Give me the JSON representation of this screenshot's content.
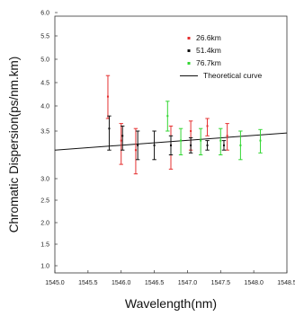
{
  "chart_data": {
    "type": "scatter",
    "xlabel": "Wavelength(nm)",
    "ylabel": "Chromatic Dispersion(ps/nm.km)",
    "xlim": [
      1545.0,
      1548.5
    ],
    "x_ticks": [
      "1545.0",
      "1545.5",
      "1546.0",
      "1546.5",
      "1547.0",
      "1547.5",
      "1548.0",
      "1548.5"
    ],
    "y_ticks": [
      {
        "value": 1.0,
        "label": "1.0"
      },
      {
        "value": 1.5,
        "label": "1.5"
      },
      {
        "value": 2.0,
        "label": "2.0"
      },
      {
        "value": 2.5,
        "label": "2.5"
      },
      {
        "value": 3.0,
        "label": "3.0"
      },
      {
        "value": 3.5,
        "label": "3.5"
      },
      {
        "value": 4.0,
        "label": "4.0"
      },
      {
        "value": 4.5,
        "label": "4.5"
      },
      {
        "value": 5.0,
        "label": "5.0"
      },
      {
        "value": 5.5,
        "label": "5.5"
      },
      {
        "value": 6.0,
        "label": "6.0"
      }
    ],
    "legend_position": "top-right",
    "series": [
      {
        "name": "26.6km",
        "color": "#e53030",
        "points": [
          {
            "x": 1545.8,
            "y": 4.2,
            "ylow": 3.75,
            "yhigh": 4.65
          },
          {
            "x": 1546.0,
            "y": 3.4,
            "ylow": 3.15,
            "yhigh": 3.65
          },
          {
            "x": 1546.22,
            "y": 3.3,
            "ylow": 3.05,
            "yhigh": 3.55
          },
          {
            "x": 1546.75,
            "y": 3.35,
            "ylow": 3.1,
            "yhigh": 3.6
          },
          {
            "x": 1547.05,
            "y": 3.5,
            "ylow": 3.3,
            "yhigh": 3.7
          },
          {
            "x": 1547.3,
            "y": 3.6,
            "ylow": 3.45,
            "yhigh": 3.75
          },
          {
            "x": 1547.6,
            "y": 3.45,
            "ylow": 3.3,
            "yhigh": 3.65
          }
        ]
      },
      {
        "name": "51.4km",
        "color": "#111111",
        "points": [
          {
            "x": 1545.82,
            "y": 3.55,
            "ylow": 3.3,
            "yhigh": 3.8
          },
          {
            "x": 1546.02,
            "y": 3.45,
            "ylow": 3.3,
            "yhigh": 3.6
          },
          {
            "x": 1546.25,
            "y": 3.35,
            "ylow": 3.2,
            "yhigh": 3.5
          },
          {
            "x": 1546.5,
            "y": 3.35,
            "ylow": 3.2,
            "yhigh": 3.5
          },
          {
            "x": 1546.75,
            "y": 3.35,
            "ylow": 3.25,
            "yhigh": 3.45
          },
          {
            "x": 1547.05,
            "y": 3.35,
            "ylow": 3.27,
            "yhigh": 3.43
          },
          {
            "x": 1547.3,
            "y": 3.35,
            "ylow": 3.3,
            "yhigh": 3.4
          },
          {
            "x": 1547.55,
            "y": 3.35,
            "ylow": 3.3,
            "yhigh": 3.4
          }
        ]
      },
      {
        "name": "76.7km",
        "color": "#33d633",
        "points": [
          {
            "x": 1546.7,
            "y": 3.8,
            "ylow": 3.5,
            "yhigh": 4.1
          },
          {
            "x": 1546.9,
            "y": 3.4,
            "ylow": 3.25,
            "yhigh": 3.55
          },
          {
            "x": 1547.2,
            "y": 3.4,
            "ylow": 3.25,
            "yhigh": 3.55
          },
          {
            "x": 1547.5,
            "y": 3.4,
            "ylow": 3.25,
            "yhigh": 3.55
          },
          {
            "x": 1547.8,
            "y": 3.35,
            "ylow": 3.2,
            "yhigh": 3.5
          },
          {
            "x": 1548.1,
            "y": 3.4,
            "ylow": 3.27,
            "yhigh": 3.53
          }
        ]
      }
    ],
    "lines": [
      {
        "name": "Theoretical curve",
        "color": "#111111",
        "points": [
          {
            "x": 1545.0,
            "y": 3.3
          },
          {
            "x": 1548.5,
            "y": 3.48
          }
        ]
      }
    ]
  }
}
